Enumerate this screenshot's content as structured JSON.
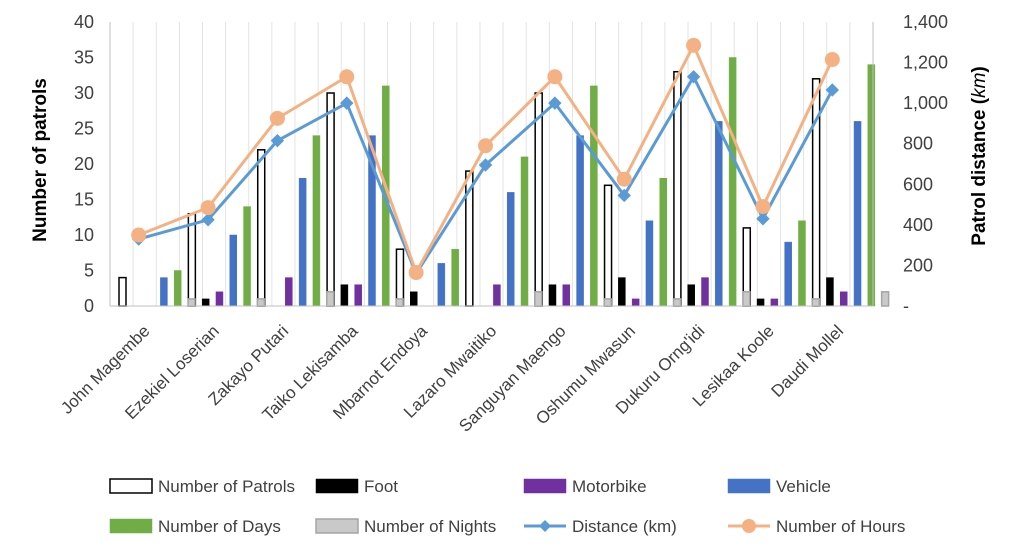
{
  "chart_data": {
    "type": "bar",
    "categories": [
      "John Magembe",
      "Ezekiel Loserian",
      "Zakayo Putari",
      "Taiko Lekisamba",
      "Mbarnot Endoya",
      "Lazaro Mwaitiko",
      "Sanguyan Maengo",
      "Oshumu Mwasun",
      "Dukuru Orng'idi",
      "Lesikaa Koole",
      "Daudi Mollel"
    ],
    "ylabel": "Number of patrols",
    "y2label_main": "Patrol distance (",
    "y2label_unit": "km",
    "y2label_close": ")",
    "ylim": [
      0,
      40
    ],
    "y2lim": [
      0,
      1400
    ],
    "yticks": [
      "0",
      "5",
      "10",
      "15",
      "20",
      "25",
      "30",
      "35",
      "40"
    ],
    "y2ticks": [
      "-",
      "200",
      "400",
      "600",
      "800",
      "1,000",
      "1,200",
      "1,400"
    ],
    "grid": true,
    "legend_position": "bottom",
    "series": [
      {
        "name": "Number of Patrols",
        "kind": "bar",
        "axis": "left",
        "color": "#ffffff",
        "stroke": "#000000",
        "values": [
          4,
          13,
          22,
          30,
          8,
          19,
          30,
          17,
          33,
          11,
          32
        ]
      },
      {
        "name": "Foot",
        "kind": "bar",
        "axis": "left",
        "color": "#000000",
        "stroke": "#000000",
        "values": [
          0,
          1,
          0,
          3,
          2,
          0,
          3,
          4,
          3,
          1,
          4
        ]
      },
      {
        "name": "Motorbike",
        "kind": "bar",
        "axis": "left",
        "color": "#7030a0",
        "stroke": "#7030a0",
        "values": [
          0,
          2,
          4,
          3,
          0,
          3,
          3,
          1,
          4,
          1,
          2
        ]
      },
      {
        "name": "Vehicle",
        "kind": "bar",
        "axis": "left",
        "color": "#4472c4",
        "stroke": "#4472c4",
        "values": [
          4,
          10,
          18,
          24,
          6,
          16,
          24,
          12,
          26,
          9,
          26
        ]
      },
      {
        "name": "Number of Days",
        "kind": "bar",
        "axis": "left",
        "color": "#70ad47",
        "stroke": "#70ad47",
        "values": [
          5,
          14,
          24,
          31,
          8,
          21,
          31,
          18,
          35,
          12,
          34
        ]
      },
      {
        "name": "Number of Nights",
        "kind": "bar",
        "axis": "left",
        "color": "#c9c9c9",
        "stroke": "#a5a5a5",
        "values": [
          1,
          1,
          2,
          1,
          0,
          2,
          1,
          1,
          2,
          1,
          2
        ]
      },
      {
        "name": "Distance (km)",
        "kind": "line",
        "axis": "right",
        "color": "#5b9bd5",
        "marker": "diamond",
        "values": [
          330,
          425,
          815,
          1000,
          160,
          695,
          1000,
          545,
          1130,
          430,
          1065
        ]
      },
      {
        "name": "Number of Hours",
        "kind": "line",
        "axis": "right",
        "color": "#f4b183",
        "marker": "circle",
        "values": [
          350,
          485,
          925,
          1130,
          165,
          790,
          1130,
          625,
          1285,
          490,
          1215
        ]
      }
    ]
  }
}
